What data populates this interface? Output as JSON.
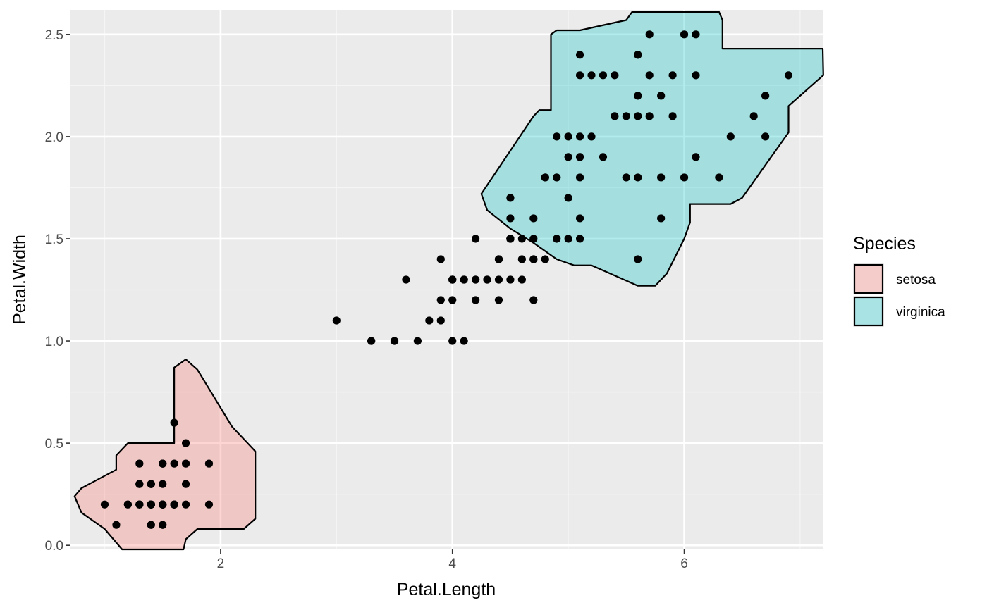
{
  "chart_data": {
    "type": "scatter",
    "xlabel": "Petal.Length",
    "ylabel": "Petal.Width",
    "xlim": [
      0.705,
      7.195
    ],
    "ylim": [
      -0.02,
      2.62
    ],
    "x_ticks": [
      2,
      4,
      6
    ],
    "x_tick_labels": [
      "2",
      "4",
      "6"
    ],
    "y_ticks": [
      0.0,
      0.5,
      1.0,
      1.5,
      2.0,
      2.5
    ],
    "y_tick_labels": [
      "0.0",
      "0.5",
      "1.0",
      "1.5",
      "2.0",
      "2.5"
    ],
    "grid": true,
    "legend": {
      "title": "Species",
      "position": "right",
      "entries": [
        {
          "label": "setosa",
          "color": "#F8766D"
        },
        {
          "label": "virginica",
          "color": "#00BFC4"
        }
      ]
    },
    "regions": [
      {
        "name": "setosa",
        "color": "#F8766D",
        "outline": [
          [
            0.74,
            0.24
          ],
          [
            0.8,
            0.28
          ],
          [
            1.1,
            0.37
          ],
          [
            1.1,
            0.44
          ],
          [
            1.2,
            0.5
          ],
          [
            1.6,
            0.5
          ],
          [
            1.6,
            0.87
          ],
          [
            1.7,
            0.91
          ],
          [
            1.8,
            0.86
          ],
          [
            2.1,
            0.58
          ],
          [
            2.3,
            0.46
          ],
          [
            2.3,
            0.13
          ],
          [
            2.2,
            0.08
          ],
          [
            1.8,
            0.08
          ],
          [
            1.7,
            0.03
          ],
          [
            1.68,
            -0.02
          ],
          [
            1.15,
            -0.02
          ],
          [
            1.0,
            0.08
          ],
          [
            0.8,
            0.16
          ]
        ]
      },
      {
        "name": "virginica",
        "color": "#00BFC4",
        "outline": [
          [
            4.25,
            1.72
          ],
          [
            4.3,
            1.64
          ],
          [
            4.5,
            1.55
          ],
          [
            4.7,
            1.48
          ],
          [
            4.9,
            1.4
          ],
          [
            5.05,
            1.37
          ],
          [
            5.2,
            1.37
          ],
          [
            5.6,
            1.27
          ],
          [
            5.75,
            1.27
          ],
          [
            5.85,
            1.33
          ],
          [
            6.0,
            1.5
          ],
          [
            6.05,
            1.58
          ],
          [
            6.05,
            1.67
          ],
          [
            6.4,
            1.67
          ],
          [
            6.5,
            1.7
          ],
          [
            6.75,
            1.9
          ],
          [
            6.9,
            2.02
          ],
          [
            6.9,
            2.15
          ],
          [
            7.2,
            2.3
          ],
          [
            7.195,
            2.43
          ],
          [
            6.33,
            2.43
          ],
          [
            6.33,
            2.57
          ],
          [
            6.3,
            2.61
          ],
          [
            5.55,
            2.61
          ],
          [
            5.5,
            2.57
          ],
          [
            5.1,
            2.52
          ],
          [
            4.9,
            2.52
          ],
          [
            4.85,
            2.5
          ],
          [
            4.85,
            2.13
          ],
          [
            4.75,
            2.13
          ],
          [
            4.7,
            2.1
          ]
        ]
      }
    ],
    "points": [
      [
        1.4,
        0.2
      ],
      [
        1.4,
        0.2
      ],
      [
        1.3,
        0.2
      ],
      [
        1.5,
        0.2
      ],
      [
        1.4,
        0.2
      ],
      [
        1.7,
        0.4
      ],
      [
        1.4,
        0.3
      ],
      [
        1.5,
        0.2
      ],
      [
        1.4,
        0.2
      ],
      [
        1.5,
        0.1
      ],
      [
        1.5,
        0.2
      ],
      [
        1.6,
        0.2
      ],
      [
        1.4,
        0.1
      ],
      [
        1.1,
        0.1
      ],
      [
        1.2,
        0.2
      ],
      [
        1.5,
        0.4
      ],
      [
        1.3,
        0.4
      ],
      [
        1.4,
        0.3
      ],
      [
        1.7,
        0.3
      ],
      [
        1.5,
        0.3
      ],
      [
        1.7,
        0.2
      ],
      [
        1.5,
        0.4
      ],
      [
        1.0,
        0.2
      ],
      [
        1.7,
        0.5
      ],
      [
        1.9,
        0.2
      ],
      [
        1.6,
        0.2
      ],
      [
        1.6,
        0.4
      ],
      [
        1.5,
        0.2
      ],
      [
        1.4,
        0.2
      ],
      [
        1.6,
        0.2
      ],
      [
        1.6,
        0.2
      ],
      [
        1.5,
        0.4
      ],
      [
        1.5,
        0.1
      ],
      [
        1.4,
        0.2
      ],
      [
        1.5,
        0.2
      ],
      [
        1.2,
        0.2
      ],
      [
        1.3,
        0.2
      ],
      [
        1.4,
        0.1
      ],
      [
        1.3,
        0.2
      ],
      [
        1.5,
        0.2
      ],
      [
        1.3,
        0.3
      ],
      [
        1.3,
        0.3
      ],
      [
        1.3,
        0.2
      ],
      [
        1.6,
        0.6
      ],
      [
        1.9,
        0.4
      ],
      [
        1.4,
        0.3
      ],
      [
        1.6,
        0.2
      ],
      [
        1.4,
        0.2
      ],
      [
        1.5,
        0.2
      ],
      [
        1.4,
        0.2
      ],
      [
        4.7,
        1.4
      ],
      [
        4.5,
        1.5
      ],
      [
        4.9,
        1.5
      ],
      [
        4.0,
        1.3
      ],
      [
        4.6,
        1.5
      ],
      [
        4.5,
        1.3
      ],
      [
        4.7,
        1.6
      ],
      [
        3.3,
        1.0
      ],
      [
        4.6,
        1.3
      ],
      [
        3.9,
        1.4
      ],
      [
        3.5,
        1.0
      ],
      [
        4.2,
        1.5
      ],
      [
        4.0,
        1.0
      ],
      [
        4.7,
        1.4
      ],
      [
        3.6,
        1.3
      ],
      [
        4.4,
        1.4
      ],
      [
        4.5,
        1.5
      ],
      [
        4.1,
        1.0
      ],
      [
        4.5,
        1.5
      ],
      [
        3.9,
        1.1
      ],
      [
        4.8,
        1.8
      ],
      [
        4.0,
        1.3
      ],
      [
        4.9,
        1.5
      ],
      [
        4.7,
        1.2
      ],
      [
        4.3,
        1.3
      ],
      [
        4.4,
        1.4
      ],
      [
        4.8,
        1.4
      ],
      [
        5.0,
        1.7
      ],
      [
        4.5,
        1.5
      ],
      [
        3.5,
        1.0
      ],
      [
        3.8,
        1.1
      ],
      [
        3.7,
        1.0
      ],
      [
        3.9,
        1.2
      ],
      [
        5.1,
        1.6
      ],
      [
        4.5,
        1.5
      ],
      [
        4.5,
        1.6
      ],
      [
        4.7,
        1.5
      ],
      [
        4.4,
        1.3
      ],
      [
        4.1,
        1.3
      ],
      [
        4.0,
        1.3
      ],
      [
        4.4,
        1.2
      ],
      [
        4.6,
        1.4
      ],
      [
        4.0,
        1.2
      ],
      [
        3.3,
        1.0
      ],
      [
        4.2,
        1.3
      ],
      [
        4.2,
        1.2
      ],
      [
        4.2,
        1.3
      ],
      [
        4.3,
        1.3
      ],
      [
        3.0,
        1.1
      ],
      [
        4.1,
        1.3
      ],
      [
        6.0,
        2.5
      ],
      [
        5.1,
        1.9
      ],
      [
        5.9,
        2.1
      ],
      [
        5.6,
        1.8
      ],
      [
        5.8,
        2.2
      ],
      [
        6.6,
        2.1
      ],
      [
        4.5,
        1.7
      ],
      [
        6.3,
        1.8
      ],
      [
        5.8,
        1.8
      ],
      [
        6.1,
        2.5
      ],
      [
        5.1,
        2.0
      ],
      [
        5.3,
        1.9
      ],
      [
        5.5,
        2.1
      ],
      [
        5.0,
        2.0
      ],
      [
        5.1,
        2.4
      ],
      [
        5.3,
        2.3
      ],
      [
        5.5,
        1.8
      ],
      [
        6.7,
        2.2
      ],
      [
        6.9,
        2.3
      ],
      [
        5.0,
        1.5
      ],
      [
        5.7,
        2.3
      ],
      [
        4.9,
        2.0
      ],
      [
        6.7,
        2.0
      ],
      [
        4.9,
        1.8
      ],
      [
        5.7,
        2.1
      ],
      [
        6.0,
        1.8
      ],
      [
        4.8,
        1.8
      ],
      [
        4.9,
        1.8
      ],
      [
        5.6,
        2.1
      ],
      [
        5.8,
        1.6
      ],
      [
        6.1,
        1.9
      ],
      [
        6.4,
        2.0
      ],
      [
        5.6,
        2.2
      ],
      [
        5.1,
        1.5
      ],
      [
        5.6,
        1.4
      ],
      [
        6.1,
        2.3
      ],
      [
        5.6,
        2.4
      ],
      [
        5.5,
        1.8
      ],
      [
        4.8,
        1.8
      ],
      [
        5.4,
        2.1
      ],
      [
        5.6,
        2.4
      ],
      [
        5.1,
        2.3
      ],
      [
        5.1,
        1.9
      ],
      [
        5.9,
        2.3
      ],
      [
        5.7,
        2.5
      ],
      [
        5.2,
        2.3
      ],
      [
        5.0,
        1.9
      ],
      [
        5.2,
        2.0
      ],
      [
        5.4,
        2.3
      ],
      [
        5.1,
        1.8
      ]
    ]
  }
}
